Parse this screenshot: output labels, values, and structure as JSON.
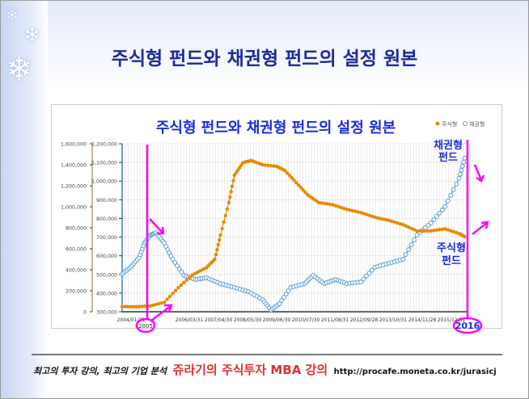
{
  "slide": {
    "title": "주식형 펀드와 채권형 펀드의 설정 원본"
  },
  "footer": {
    "tagline": "최고의 투자 강의, 최고의 기업 분석",
    "brand": "쥬라기의 주식투자 MBA 강의",
    "url": "http://procafe.moneta.co.kr/jurasicj"
  },
  "annotations": {
    "bond_label": [
      "채권형",
      "펀드"
    ],
    "equity_label": [
      "주식형",
      "펀드"
    ],
    "year_start": "2005",
    "year_end": "2016"
  },
  "colors": {
    "equity": "#e88a00",
    "bond": "#5b9bd5",
    "annot": "#ff00ff",
    "title": "#1a2a9a"
  },
  "chart_data": {
    "type": "line",
    "title": "주식형 펀드와 채권형 펀드의 설정 원본",
    "legend": [
      "주식형",
      "채권형"
    ],
    "legend_position": "top-right",
    "left_axis": {
      "series": "주식형",
      "ylim": [
        0,
        1600000
      ],
      "ticks": [
        "0",
        "200,000",
        "400,000",
        "600,000",
        "800,000",
        "1,000,000",
        "1,200,000",
        "1,400,000",
        "1,600,000"
      ]
    },
    "right_axis": {
      "series": "채권형",
      "ylim": [
        300000,
        1200000
      ],
      "ticks": [
        "300,000",
        "400,000",
        "500,000",
        "600,000",
        "700,000",
        "800,000",
        "900,000",
        "1,000,000",
        "1,100,000",
        "1,200,000"
      ]
    },
    "xlim": [
      2004.0,
      2016.3
    ],
    "x_ticks": [
      "2004/01/31",
      "2005/02/28",
      "2006/03/31",
      "2007/04/30",
      "2008/05/30",
      "2009/06/30",
      "2010/07/30",
      "2011/08/31",
      "2012/09/28",
      "2013/10/31",
      "2014/11/28",
      "2015/12/31"
    ],
    "grid": true,
    "series": [
      {
        "name": "주식형",
        "x": [
          2004.0,
          2004.5,
          2005.0,
          2005.5,
          2006.0,
          2006.5,
          2007.0,
          2007.3,
          2007.5,
          2007.8,
          2008.0,
          2008.3,
          2008.6,
          2009.0,
          2009.5,
          2009.8,
          2010.2,
          2010.6,
          2011.0,
          2011.5,
          2012.0,
          2012.5,
          2013.0,
          2013.5,
          2014.0,
          2014.5,
          2015.0,
          2015.5,
          2016.0,
          2016.2
        ],
        "values": [
          50000,
          48000,
          55000,
          90000,
          230000,
          350000,
          420000,
          500000,
          730000,
          1040000,
          1300000,
          1420000,
          1440000,
          1400000,
          1385000,
          1345000,
          1230000,
          1115000,
          1040000,
          1020000,
          975000,
          945000,
          900000,
          870000,
          830000,
          770000,
          770000,
          790000,
          745000,
          715000
        ]
      },
      {
        "name": "채권형",
        "x": [
          2004.0,
          2004.3,
          2004.6,
          2004.8,
          2005.0,
          2005.2,
          2005.5,
          2005.8,
          2006.2,
          2006.6,
          2007.0,
          2007.5,
          2008.0,
          2008.5,
          2009.0,
          2009.3,
          2009.6,
          2010.0,
          2010.5,
          2010.8,
          2011.2,
          2011.6,
          2012.0,
          2012.5,
          2013.0,
          2013.5,
          2014.0,
          2014.5,
          2015.0,
          2015.5,
          2016.0,
          2016.2
        ],
        "values": [
          503000,
          538000,
          590000,
          668000,
          711000,
          724000,
          668000,
          581000,
          495000,
          473000,
          482000,
          451000,
          430000,
          408000,
          365000,
          309000,
          343000,
          430000,
          451000,
          495000,
          451000,
          473000,
          451000,
          460000,
          538000,
          560000,
          581000,
          711000,
          776000,
          863000,
          1015000,
          1123000
        ]
      }
    ]
  }
}
